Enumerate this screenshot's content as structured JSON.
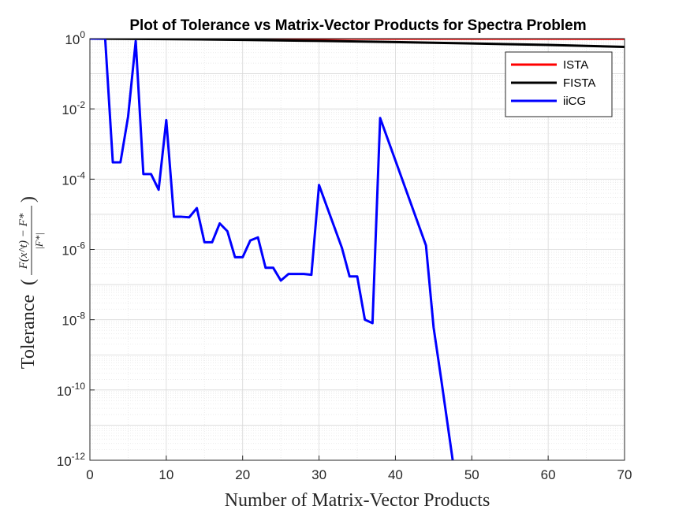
{
  "chart_data": {
    "type": "line",
    "title": "Plot of Tolerance vs Matrix-Vector Products for Spectra Problem",
    "xlabel": "Number of Matrix-Vector Products",
    "ylabel_text": "Tolerance",
    "ylabel_fraction": {
      "numerator": "F(x^t) − F*",
      "denominator": "|F*|"
    },
    "xlim": [
      0,
      70
    ],
    "ylim": [
      1e-12,
      1
    ],
    "yscale": "log",
    "grid": true,
    "legend_placement": "top-right",
    "x_ticks": [
      0,
      10,
      20,
      30,
      40,
      50,
      60,
      70
    ],
    "y_ticks": [
      {
        "base": "10",
        "exp": "-12",
        "value": 1e-12
      },
      {
        "base": "10",
        "exp": "-10",
        "value": 1e-10
      },
      {
        "base": "10",
        "exp": "-8",
        "value": 1e-08
      },
      {
        "base": "10",
        "exp": "-6",
        "value": 1e-06
      },
      {
        "base": "10",
        "exp": "-4",
        "value": 0.0001
      },
      {
        "base": "10",
        "exp": "-2",
        "value": 0.01
      },
      {
        "base": "10",
        "exp": "0",
        "value": 1
      }
    ],
    "series": [
      {
        "name": "ISTA",
        "color": "#ff0000",
        "x": [
          0,
          10,
          20,
          30,
          40,
          50,
          60,
          70
        ],
        "y": [
          1.0,
          0.999,
          0.998,
          0.997,
          0.995,
          0.993,
          0.991,
          0.989
        ]
      },
      {
        "name": "FISTA",
        "color": "#000000",
        "x": [
          0,
          10,
          20,
          30,
          40,
          50,
          60,
          70
        ],
        "y": [
          1.0,
          0.97,
          0.92,
          0.86,
          0.8,
          0.73,
          0.66,
          0.58
        ]
      },
      {
        "name": "iiCG",
        "color": "#0000ff",
        "x": [
          0,
          1,
          2,
          3,
          4,
          5,
          6,
          7,
          8,
          9,
          10,
          11,
          12,
          13,
          14,
          15,
          16,
          17,
          18,
          19,
          20,
          21,
          22,
          23,
          24,
          25,
          26,
          27,
          28,
          29,
          30,
          33,
          34,
          35,
          36,
          37,
          38,
          44,
          45,
          46,
          47.5
        ],
        "y": [
          1,
          1,
          1,
          0.0003,
          0.0003,
          0.006,
          0.85,
          0.00014,
          0.00014,
          5e-05,
          0.0048,
          8.5e-06,
          8.5e-06,
          8.2e-06,
          1.5e-05,
          1.6e-06,
          1.6e-06,
          5.5e-06,
          3.3e-06,
          6e-07,
          6e-07,
          1.8e-06,
          2.2e-06,
          3e-07,
          3e-07,
          1.3e-07,
          2e-07,
          2e-07,
          2e-07,
          1.9e-07,
          6.8e-05,
          1.1e-06,
          1.7e-07,
          1.7e-07,
          1e-08,
          8e-09,
          0.0055,
          1.3e-06,
          6e-09,
          2e-10,
          1e-12
        ]
      }
    ]
  }
}
